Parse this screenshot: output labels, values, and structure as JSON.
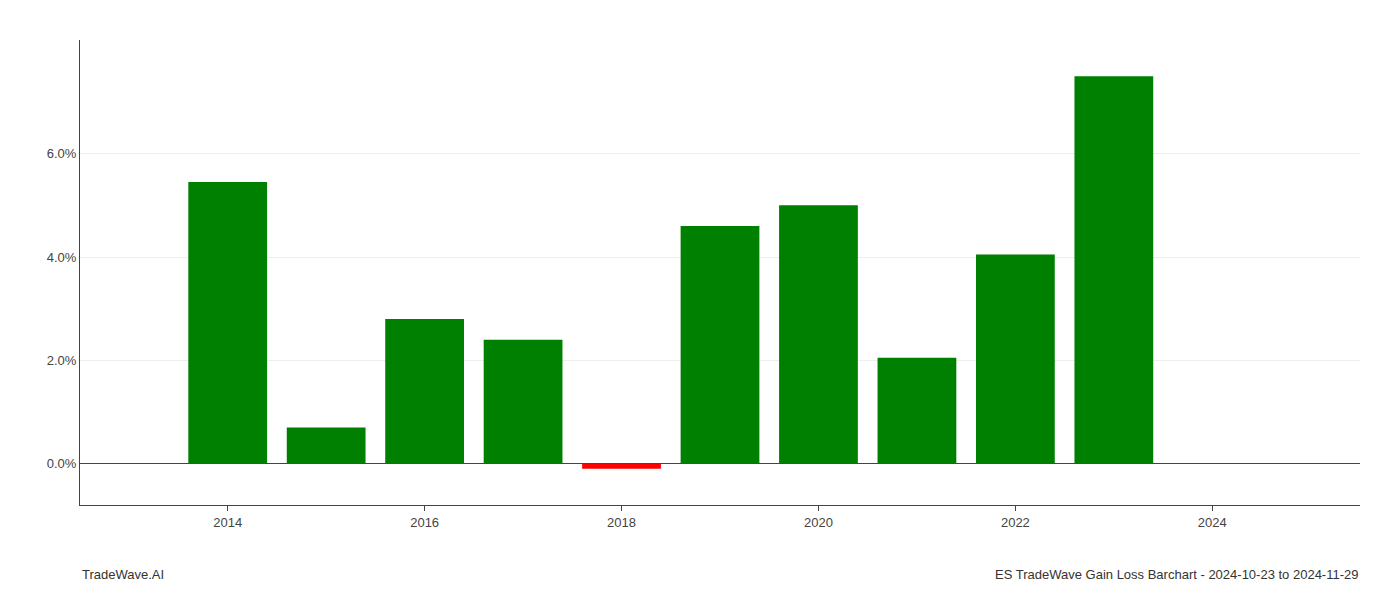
{
  "chart_data": {
    "type": "bar",
    "x": [
      2014,
      2015,
      2016,
      2017,
      2018,
      2019,
      2020,
      2021,
      2022,
      2023
    ],
    "values": [
      0.0545,
      0.007,
      0.028,
      0.024,
      -0.001,
      0.046,
      0.05,
      0.0205,
      0.0405,
      0.075
    ],
    "colors": [
      "#008000",
      "#008000",
      "#008000",
      "#008000",
      "#ff0000",
      "#008000",
      "#008000",
      "#008000",
      "#008000",
      "#008000"
    ],
    "xlim": [
      2012.5,
      2025.5
    ],
    "xticks": [
      2014,
      2016,
      2018,
      2020,
      2022,
      2024
    ],
    "ylim": [
      -0.008,
      0.082
    ],
    "yticks": [
      {
        "value": 0.0,
        "label": "0.0%"
      },
      {
        "value": 0.02,
        "label": "2.0%"
      },
      {
        "value": 0.04,
        "label": "4.0%"
      },
      {
        "value": 0.06,
        "label": "6.0%"
      }
    ],
    "grid": true,
    "annotations": [
      "TradeWave.AI",
      "ES TradeWave Gain Loss Barchart - 2024-10-23 to 2024-11-29"
    ]
  }
}
